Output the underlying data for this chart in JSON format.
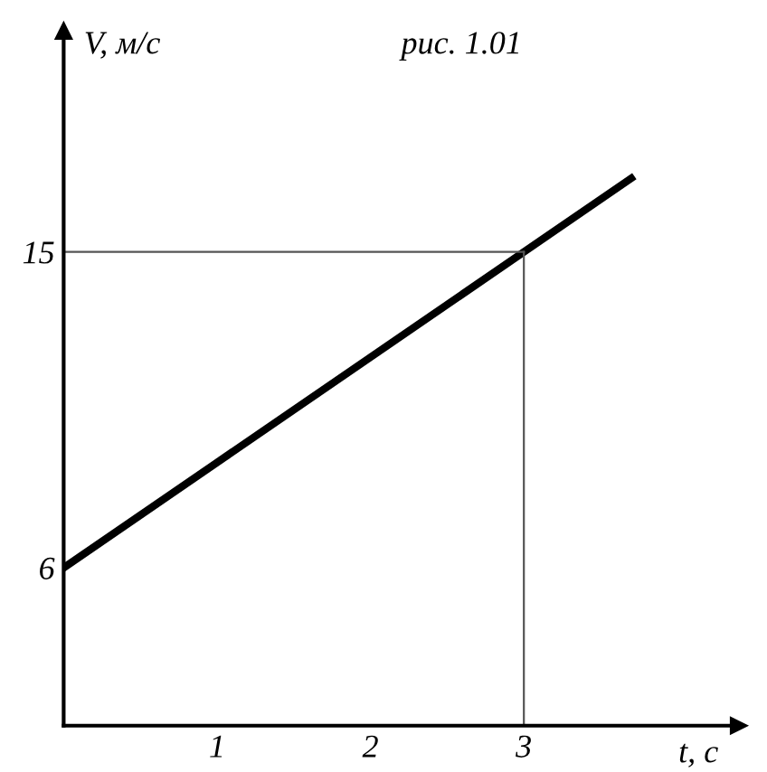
{
  "chart_data": {
    "type": "line",
    "title": "рис. 1.01",
    "xlabel": "t, с",
    "ylabel": "V, м/с",
    "x": [
      0,
      3.7
    ],
    "series": [
      {
        "color": "#000000",
        "values": [
          6,
          17.1
        ]
      }
    ],
    "xlim": [
      0,
      4.4
    ],
    "ylim": [
      1.5,
      21.3
    ],
    "xticks": [
      1,
      2,
      3
    ],
    "yticks": [
      6,
      15
    ],
    "ref_lines": [
      {
        "axis": "x",
        "value": 3,
        "color": "#555555"
      },
      {
        "axis": "y",
        "value": 15,
        "color": "#555555"
      }
    ],
    "grid": false,
    "marker": "none",
    "line_style": "solid"
  }
}
